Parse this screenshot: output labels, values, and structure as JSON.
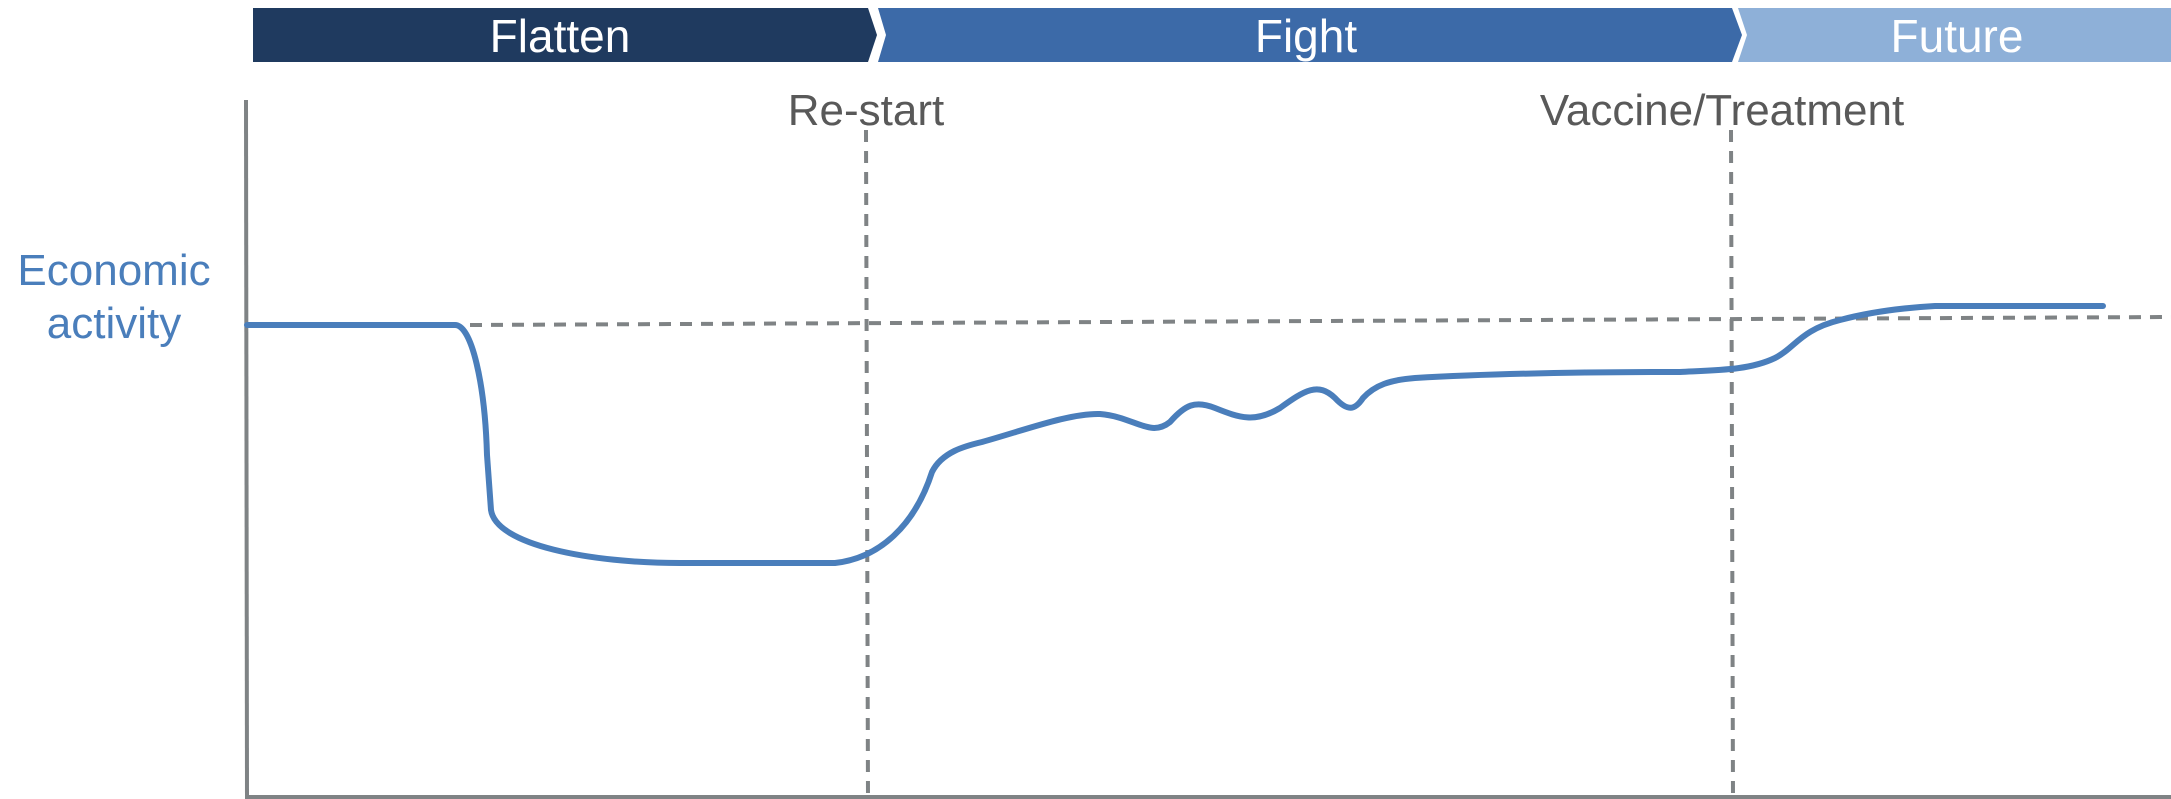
{
  "phases": [
    {
      "label": "Flatten",
      "color": "#1f3a5f"
    },
    {
      "label": "Fight",
      "color": "#3c6aa8"
    },
    {
      "label": "Future",
      "color": "#8eb0d8"
    }
  ],
  "markers": {
    "restart": "Re-start",
    "vaccine": "Vaccine/Treatment"
  },
  "y_axis_label": {
    "line1": "Economic",
    "line2": "activity"
  },
  "colors": {
    "curve": "#4a7ebb",
    "axis": "#7f8385",
    "dashed": "#7f8385"
  }
}
